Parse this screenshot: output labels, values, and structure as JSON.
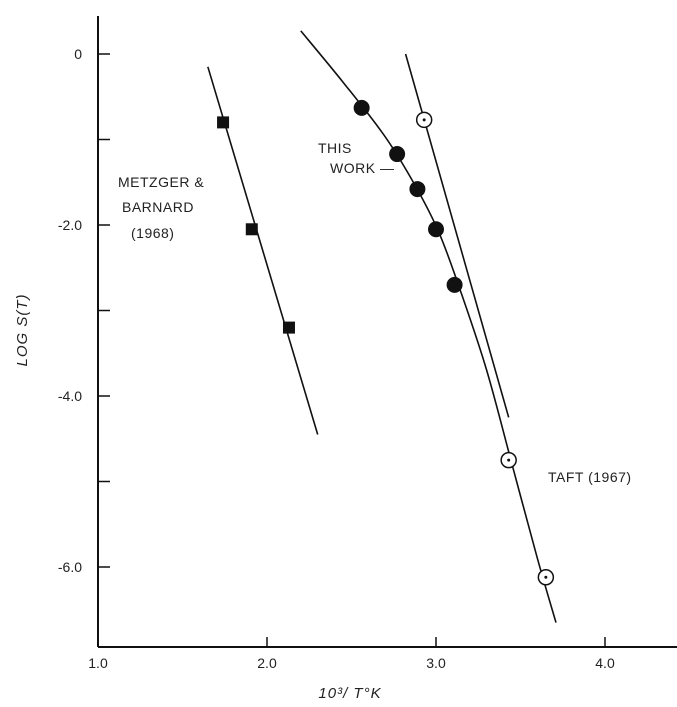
{
  "chart_data": {
    "type": "scatter",
    "title": "",
    "xlabel": "10³/ T°K",
    "ylabel": "LOG S(T)",
    "xlim": [
      1.0,
      4.5
    ],
    "ylim": [
      -7.0,
      0.5
    ],
    "grid": false,
    "xticks": [
      {
        "value": 1.0,
        "label": "1.0"
      },
      {
        "value": 2.0,
        "label": "2.0"
      },
      {
        "value": 3.0,
        "label": "3.0"
      },
      {
        "value": 4.0,
        "label": "4.0"
      }
    ],
    "yticks": [
      {
        "value": 0,
        "label": "0"
      },
      {
        "value": -1,
        "label": ""
      },
      {
        "value": -2,
        "label": "-2.0"
      },
      {
        "value": -3,
        "label": ""
      },
      {
        "value": -4,
        "label": "-4.0"
      },
      {
        "value": -5,
        "label": ""
      },
      {
        "value": -6,
        "label": "-6.0"
      }
    ],
    "series": [
      {
        "id": "metzger",
        "marker": "square-filled",
        "points": [
          {
            "x": 1.74,
            "y": -0.8
          },
          {
            "x": 1.91,
            "y": -2.05
          },
          {
            "x": 2.13,
            "y": -3.2
          }
        ],
        "fit": [
          {
            "x": 1.65,
            "y": -0.15
          },
          {
            "x": 2.3,
            "y": -4.45
          }
        ]
      },
      {
        "id": "this-work",
        "marker": "circle-filled",
        "points": [
          {
            "x": 2.56,
            "y": -0.63
          },
          {
            "x": 2.77,
            "y": -1.17
          },
          {
            "x": 2.89,
            "y": -1.58
          },
          {
            "x": 3.0,
            "y": -2.05
          },
          {
            "x": 3.11,
            "y": -2.7
          }
        ],
        "fit": [
          {
            "x": 2.2,
            "y": 0.27
          },
          {
            "x": 2.45,
            "y": -0.33
          },
          {
            "x": 2.7,
            "y": -0.97
          },
          {
            "x": 2.88,
            "y": -1.55
          },
          {
            "x": 3.02,
            "y": -2.1
          },
          {
            "x": 3.15,
            "y": -2.8
          },
          {
            "x": 3.3,
            "y": -3.7
          },
          {
            "x": 3.45,
            "y": -4.8
          },
          {
            "x": 3.6,
            "y": -5.9
          },
          {
            "x": 3.71,
            "y": -6.65
          }
        ]
      },
      {
        "id": "taft",
        "marker": "circle-open-dot",
        "points": [
          {
            "x": 2.93,
            "y": -0.77
          },
          {
            "x": 3.43,
            "y": -4.75
          },
          {
            "x": 3.65,
            "y": -6.12
          }
        ],
        "fit": [
          {
            "x": 2.82,
            "y": 0.0
          },
          {
            "x": 3.43,
            "y": -4.25
          }
        ]
      }
    ],
    "annotations": [
      {
        "id": "metzger-label",
        "lines": [
          "METZGER &",
          "BARNARD",
          "(1968)"
        ]
      },
      {
        "id": "this-work-label",
        "lines": [
          "THIS",
          "WORK —"
        ]
      },
      {
        "id": "taft-label",
        "lines": [
          "TAFT (1967)"
        ]
      }
    ]
  }
}
